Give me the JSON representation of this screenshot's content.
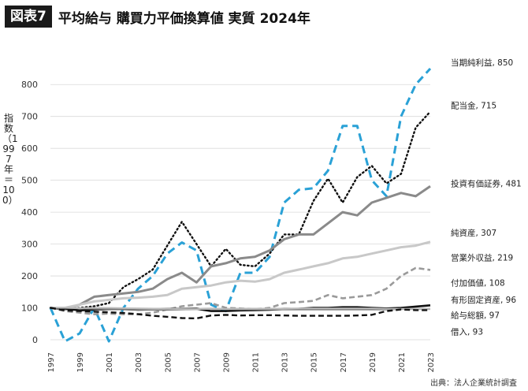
{
  "title": {
    "badge": "図表7",
    "text": "平均給与 購買力平価換算値 実質 2024年"
  },
  "source": "出典：法人企業統計調査",
  "chart_data": {
    "type": "line",
    "title": "平均給与 購買力平価換算値 実質 2024年",
    "ylabel": "指数（1997年＝100）",
    "xlabel": "",
    "ylim": [
      0,
      850
    ],
    "yticks": [
      0,
      100,
      200,
      300,
      400,
      500,
      600,
      700,
      800
    ],
    "xticks": [
      1997,
      1999,
      2001,
      2003,
      2005,
      2007,
      2009,
      2011,
      2013,
      2015,
      2017,
      2019,
      2021,
      2023
    ],
    "grid": true,
    "legend": "direct labels at right end of lines",
    "x": [
      1997,
      1998,
      1999,
      2000,
      2001,
      2002,
      2003,
      2004,
      2005,
      2006,
      2007,
      2008,
      2009,
      2010,
      2011,
      2012,
      2013,
      2014,
      2015,
      2016,
      2017,
      2018,
      2019,
      2020,
      2021,
      2022,
      2023
    ],
    "series": [
      {
        "name": "当期純利益",
        "end_label": "当期純利益, 850",
        "color": "#2aa1d6",
        "dash": "long",
        "values": [
          100,
          -5,
          20,
          100,
          -5,
          100,
          160,
          200,
          270,
          305,
          280,
          110,
          90,
          210,
          210,
          260,
          430,
          470,
          475,
          530,
          670,
          670,
          500,
          450,
          700,
          800,
          850
        ]
      },
      {
        "name": "配当金",
        "end_label": "配当金, 715",
        "color": "#111111",
        "dash": "dot",
        "values": [
          100,
          95,
          100,
          105,
          115,
          165,
          190,
          220,
          295,
          370,
          300,
          230,
          285,
          235,
          230,
          270,
          330,
          330,
          435,
          505,
          430,
          510,
          545,
          490,
          520,
          665,
          715
        ]
      },
      {
        "name": "投資有価証券",
        "end_label": "投資有価証券, 481",
        "color": "#8a8a8a",
        "dash": "solid",
        "values": [
          100,
          95,
          110,
          135,
          140,
          145,
          150,
          160,
          190,
          210,
          180,
          230,
          240,
          255,
          260,
          280,
          315,
          330,
          330,
          365,
          400,
          390,
          430,
          445,
          460,
          450,
          481
        ]
      },
      {
        "name": "純資産",
        "end_label": "純資産, 307",
        "color": "#c8c8c8",
        "dash": "solid",
        "values": [
          100,
          100,
          110,
          120,
          125,
          130,
          132,
          135,
          140,
          160,
          165,
          170,
          180,
          185,
          182,
          190,
          210,
          220,
          230,
          240,
          255,
          260,
          270,
          280,
          290,
          295,
          307
        ]
      },
      {
        "name": "営業外収益",
        "end_label": "営業外収益, 219",
        "color": "#9a9a9a",
        "dash": "dash",
        "values": [
          100,
          90,
          85,
          80,
          82,
          80,
          80,
          85,
          95,
          105,
          110,
          115,
          100,
          98,
          95,
          100,
          115,
          118,
          122,
          140,
          130,
          135,
          140,
          160,
          200,
          225,
          219
        ]
      },
      {
        "name": "付加価値",
        "end_label": "付加価値, 108",
        "color": "#111111",
        "dash": "solid",
        "values": [
          100,
          98,
          92,
          95,
          96,
          96,
          94,
          95,
          96,
          96,
          97,
          90,
          90,
          92,
          93,
          94,
          96,
          97,
          100,
          100,
          102,
          102,
          100,
          98,
          100,
          104,
          108
        ]
      },
      {
        "name": "有形固定資産",
        "end_label": "有形固定資産, 96",
        "color": "#777777",
        "dash": "solid",
        "values": [
          100,
          100,
          98,
          97,
          96,
          95,
          94,
          94,
          94,
          95,
          96,
          97,
          96,
          95,
          95,
          95,
          95,
          95,
          95,
          95,
          95,
          95,
          95,
          95,
          96,
          96,
          96
        ]
      },
      {
        "name": "給与総額",
        "end_label": "給与総額, 97",
        "color": "#bdbdbd",
        "dash": "solid",
        "values": [
          100,
          100,
          99,
          100,
          100,
          99,
          98,
          97,
          97,
          96,
          96,
          97,
          96,
          97,
          97,
          97,
          97,
          98,
          98,
          98,
          98,
          98,
          98,
          97,
          97,
          97,
          97
        ]
      },
      {
        "name": "借入",
        "end_label": "借入, 93",
        "color": "#111111",
        "dash": "dash",
        "values": [
          100,
          92,
          90,
          88,
          86,
          84,
          80,
          75,
          72,
          68,
          67,
          76,
          78,
          76,
          77,
          77,
          76,
          75,
          75,
          75,
          75,
          76,
          78,
          90,
          95,
          93,
          93
        ]
      }
    ]
  }
}
